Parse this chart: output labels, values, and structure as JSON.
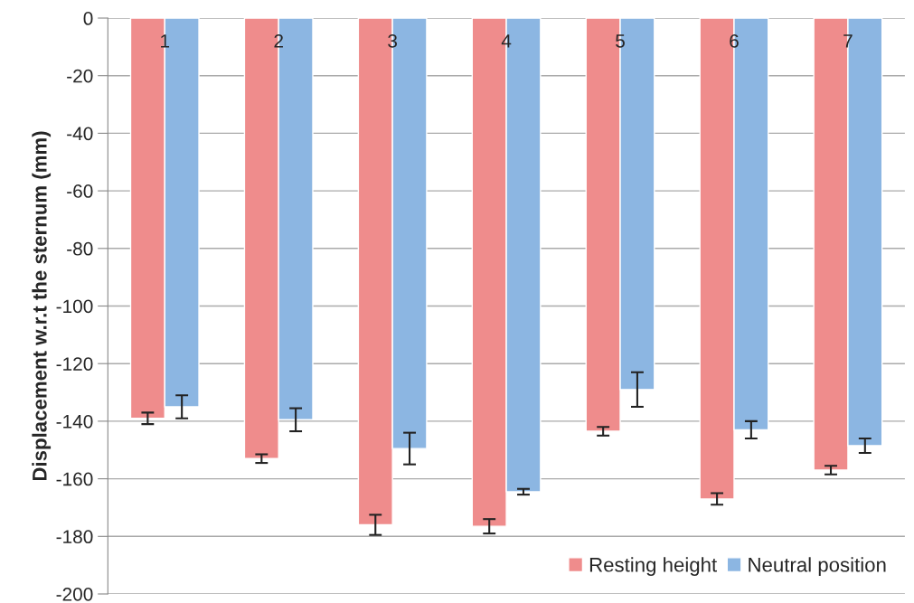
{
  "chart_data": {
    "type": "bar",
    "ylabel": "Displacement w.r.t the sternum (mm)",
    "categories": [
      "1",
      "2",
      "3",
      "4",
      "5",
      "6",
      "7"
    ],
    "series": [
      {
        "name": "Resting height",
        "color": "#ef8c8c",
        "values": [
          -139,
          -153,
          -176,
          -176.5,
          -143.5,
          -167,
          -157
        ],
        "errors": [
          2,
          1.5,
          3.5,
          2.5,
          1.5,
          2,
          1.5
        ]
      },
      {
        "name": "Neutral position",
        "color": "#8cb6e2",
        "values": [
          -135,
          -139.5,
          -149.5,
          -164.5,
          -129,
          -143,
          -148.5
        ],
        "errors": [
          4,
          4,
          5.5,
          1,
          6,
          3,
          2.5
        ]
      }
    ],
    "ylim": [
      -200,
      0
    ],
    "yticks": [
      -200,
      -180,
      -160,
      -140,
      -120,
      -100,
      -80,
      -60,
      -40,
      -20,
      0
    ],
    "grid": "y",
    "legend": "bottom right"
  }
}
